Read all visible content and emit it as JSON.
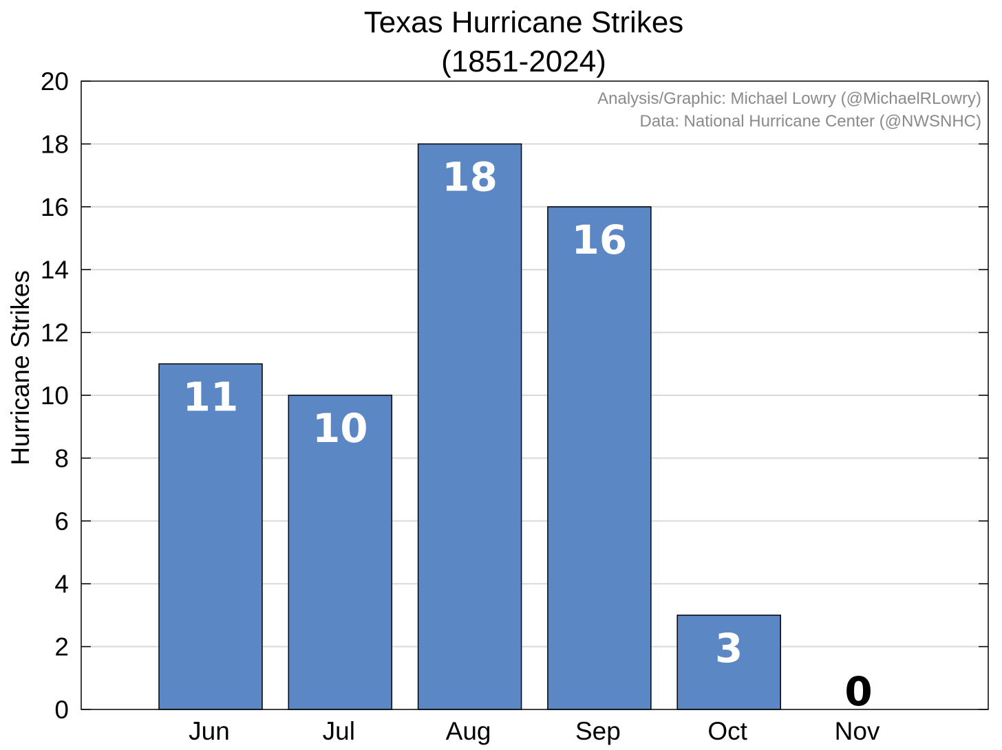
{
  "chart_data": {
    "type": "bar",
    "title": "Texas Hurricane Strikes",
    "subtitle": "(1851-2024)",
    "ylabel": "Hurricane Strikes",
    "xlabel": "",
    "categories": [
      "Jun",
      "Jul",
      "Aug",
      "Sep",
      "Oct",
      "Nov"
    ],
    "values": [
      11,
      10,
      18,
      16,
      3,
      0
    ],
    "ylim": [
      0,
      20
    ],
    "yticks": [
      0,
      2,
      4,
      6,
      8,
      10,
      12,
      14,
      16,
      18,
      20
    ],
    "grid": true,
    "bar_color": "#5b87c5",
    "annotations": [
      "Analysis/Graphic: Michael Lowry (@MichaelRLowry)",
      "Data: National Hurricane Center (@NWSNHC)"
    ]
  }
}
